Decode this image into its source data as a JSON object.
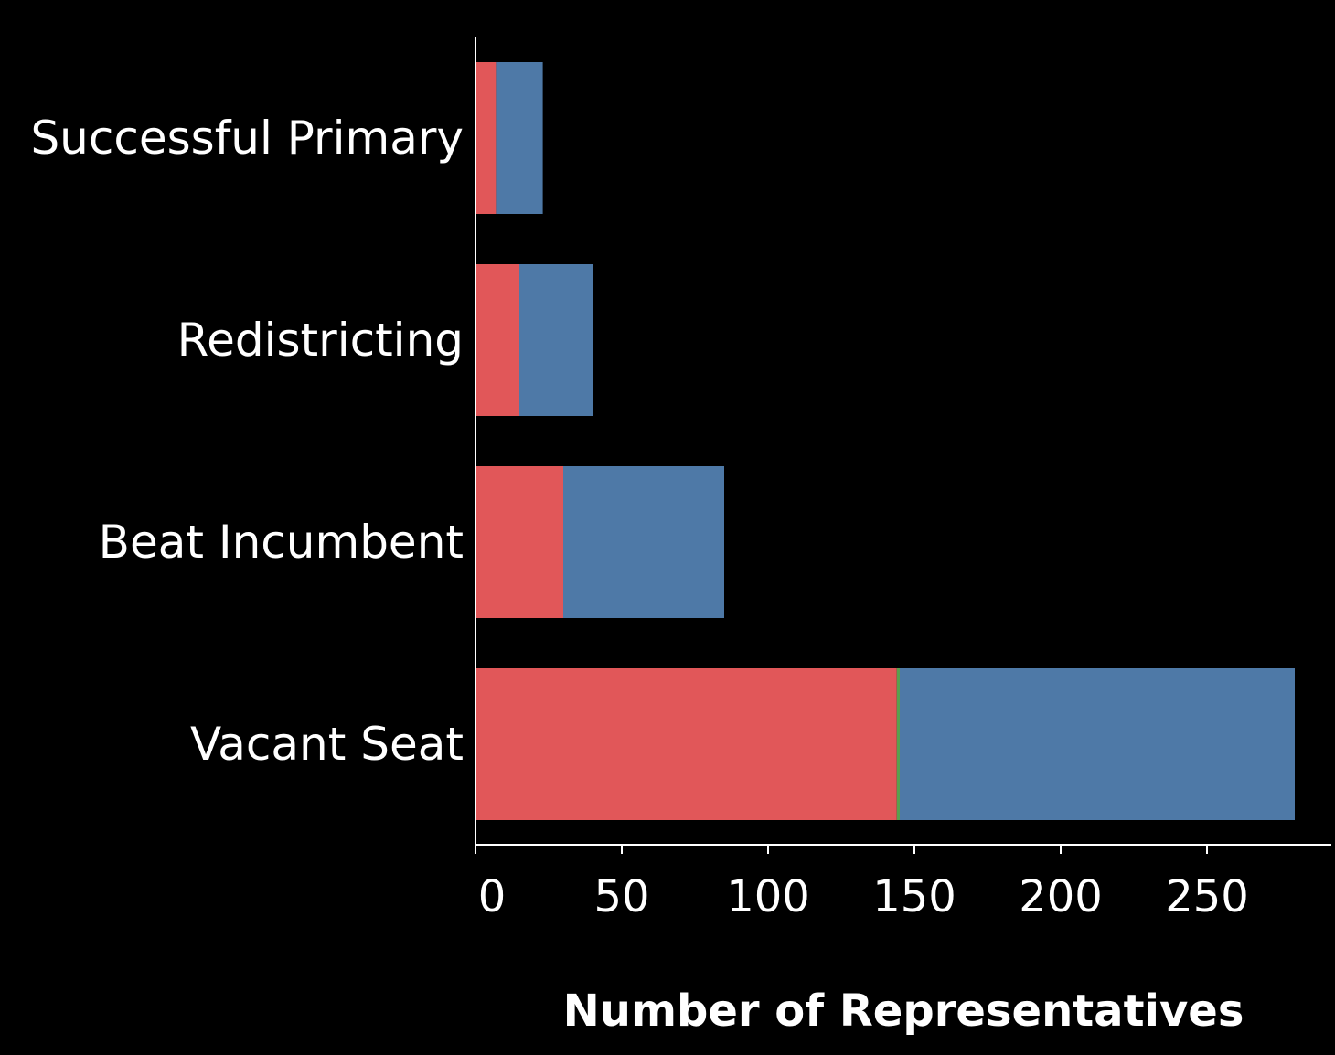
{
  "chart_data": {
    "type": "bar",
    "orientation": "horizontal",
    "stacked": true,
    "categories": [
      "Successful Primary",
      "Redistricting",
      "Beat Incumbent",
      "Vacant Seat"
    ],
    "series": [
      {
        "color": "#e15759",
        "values": [
          7,
          15,
          30,
          144
        ]
      },
      {
        "color": "#59a14f",
        "values": [
          0,
          0,
          0,
          1
        ]
      },
      {
        "color": "#4e79a7",
        "values": [
          16,
          25,
          55,
          135
        ]
      }
    ],
    "xlabel": "Number of Representatives",
    "ylabel": "",
    "xlim": [
      0,
      290
    ],
    "x_ticks": [
      "0",
      "50",
      "100",
      "150",
      "200",
      "250"
    ],
    "grid": false,
    "legend": "none"
  },
  "colors": {
    "background": "#000000",
    "axis": "#ffffff",
    "text": "#ffffff"
  }
}
